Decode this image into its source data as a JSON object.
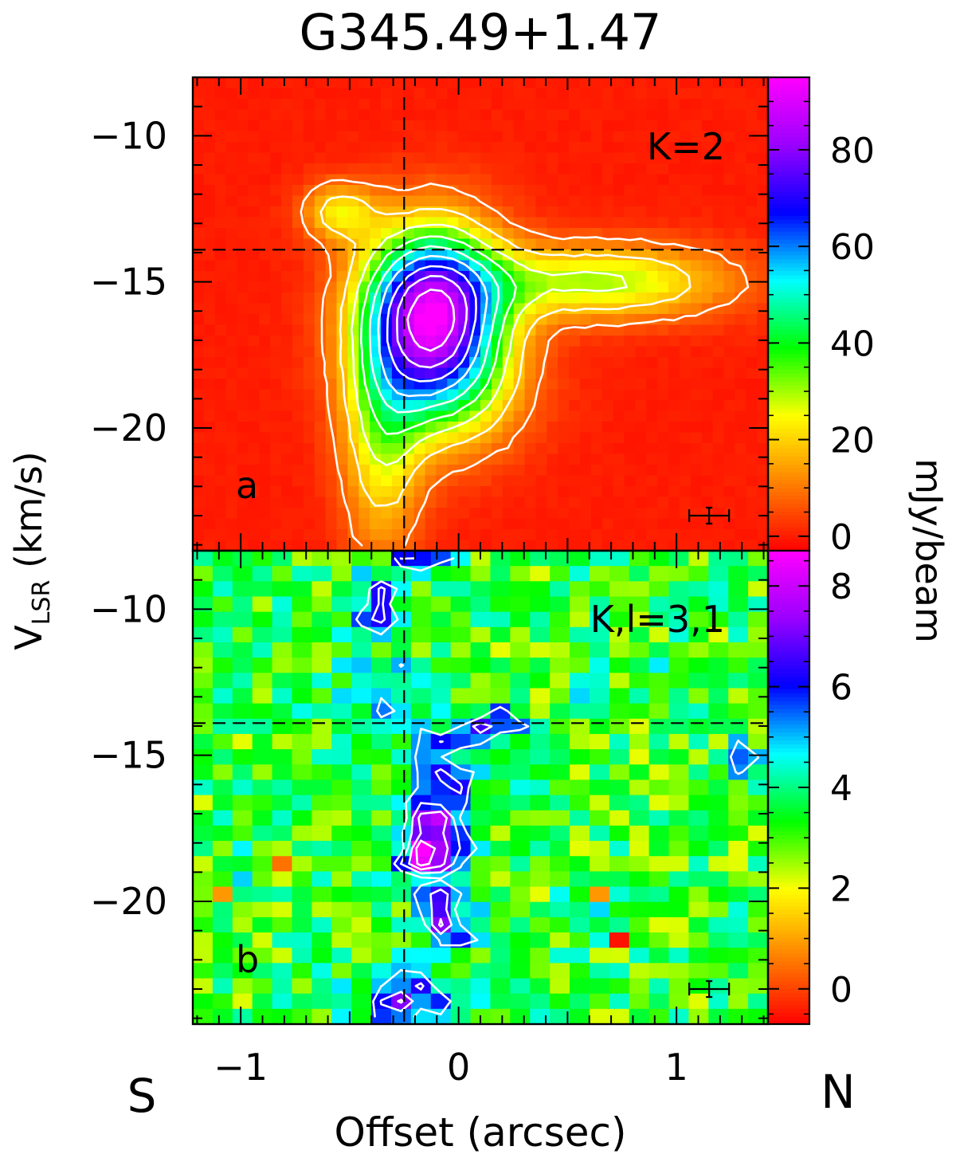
{
  "chart_data": [
    {
      "type": "heatmap",
      "panel": "a",
      "title": "G345.49+1.47",
      "annotation": "K=2",
      "xlabel": "Offset (arcsec)",
      "ylabel": "V_LSR (km/s)",
      "xlim": [
        -1.22,
        1.42
      ],
      "ylim": [
        -24.2,
        -8.0
      ],
      "xticks": [
        -1,
        0,
        1
      ],
      "yticks": [
        -10,
        -15,
        -20
      ],
      "colorbar": {
        "label": "mJy/beam",
        "range": [
          -3,
          95
        ],
        "ticks": [
          0,
          20,
          40,
          60,
          80
        ]
      },
      "reference_lines": {
        "offset": -0.25,
        "velocity": -13.9
      },
      "error_bar": {
        "offset": 1.15,
        "velocity": -23.0
      },
      "contours_white": [
        8,
        18,
        28,
        38,
        48,
        58,
        68,
        78,
        88
      ],
      "components": [
        {
          "offset": -0.12,
          "velocity": -16.1,
          "peak": 88,
          "sigma_offset": 0.22,
          "sigma_velocity": 2.0
        },
        {
          "offset": 0.65,
          "velocity": -15.0,
          "peak": 30,
          "sigma_offset": 0.42,
          "sigma_velocity": 0.9
        },
        {
          "offset": -0.55,
          "velocity": -12.6,
          "peak": 22,
          "sigma_offset": 0.12,
          "sigma_velocity": 0.7
        },
        {
          "offset": -0.35,
          "velocity": -20.5,
          "peak": 24,
          "sigma_offset": 0.13,
          "sigma_velocity": 2.8
        },
        {
          "offset": -0.05,
          "velocity": -18.8,
          "peak": 20,
          "sigma_offset": 0.25,
          "sigma_velocity": 1.6
        }
      ]
    },
    {
      "type": "heatmap",
      "panel": "b",
      "annotation": "K,l=3,1",
      "xlabel": "Offset (arcsec)",
      "ylabel": "V_LSR (km/s)",
      "xlim": [
        -1.22,
        1.42
      ],
      "ylim": [
        -24.2,
        -8.0
      ],
      "xticks": [
        -1,
        0,
        1
      ],
      "yticks": [
        -10,
        -15,
        -20
      ],
      "colorbar": {
        "label": "mJy/beam",
        "range": [
          -0.7,
          8.7
        ],
        "ticks": [
          0,
          2,
          4,
          6,
          8
        ]
      },
      "reference_lines": {
        "offset": -0.25,
        "velocity": -13.9
      },
      "error_bar": {
        "offset": 1.15,
        "velocity": -23.0
      },
      "background_level": 3.3,
      "components": [
        {
          "offset": -0.13,
          "velocity": -18.3,
          "peak": 4.9,
          "sigma_offset": 0.1,
          "sigma_velocity": 0.8
        },
        {
          "offset": -0.09,
          "velocity": -16.0,
          "peak": 3.4,
          "sigma_offset": 0.1,
          "sigma_velocity": 1.3
        },
        {
          "offset": -0.38,
          "velocity": -9.8,
          "peak": 3.3,
          "sigma_offset": 0.07,
          "sigma_velocity": 0.6
        },
        {
          "offset": 0.18,
          "velocity": -14.0,
          "peak": 3.0,
          "sigma_offset": 0.09,
          "sigma_velocity": 0.45
        },
        {
          "offset": -0.05,
          "velocity": -20.7,
          "peak": 3.0,
          "sigma_offset": 0.08,
          "sigma_velocity": 0.7
        },
        {
          "offset": -0.25,
          "velocity": -23.5,
          "peak": 2.8,
          "sigma_offset": 0.16,
          "sigma_velocity": 0.9
        },
        {
          "offset": -0.15,
          "velocity": -8.2,
          "peak": 3.0,
          "sigma_offset": 0.1,
          "sigma_velocity": 0.5
        },
        {
          "offset": -0.78,
          "velocity": -16.2,
          "peak": 2.2,
          "sigma_offset": 0.06,
          "sigma_velocity": 0.5
        },
        {
          "offset": 0.28,
          "velocity": -16.0,
          "peak": 2.0,
          "sigma_offset": 0.05,
          "sigma_velocity": 0.5
        },
        {
          "offset": 1.3,
          "velocity": -15.0,
          "peak": 1.8,
          "sigma_offset": 0.05,
          "sigma_velocity": 0.7
        },
        {
          "offset": 0.5,
          "velocity": -20.5,
          "peak": 1.5,
          "sigma_offset": 0.05,
          "sigma_velocity": 0.4
        },
        {
          "offset": -0.98,
          "velocity": -18.5,
          "peak": 1.5,
          "sigma_offset": 0.05,
          "sigma_velocity": 0.5
        },
        {
          "offset": -0.35,
          "velocity": -13.0,
          "peak": 1.3,
          "sigma_offset": 0.2,
          "sigma_velocity": 1.0
        },
        {
          "offset": 0.85,
          "velocity": -11.8,
          "peak": 1.2,
          "sigma_offset": 0.05,
          "sigma_velocity": 0.4
        },
        {
          "offset": 0.62,
          "velocity": -12.8,
          "peak": 1.2,
          "sigma_offset": 0.05,
          "sigma_velocity": 0.4
        },
        {
          "offset": 0.72,
          "velocity": -20.0,
          "peak": 1.3,
          "sigma_offset": 0.05,
          "sigma_velocity": 0.6
        }
      ],
      "outliers": [
        {
          "offset": 0.72,
          "velocity": -21.2,
          "value": -0.5
        },
        {
          "offset": -0.78,
          "velocity": -18.5,
          "value": 0.5
        },
        {
          "offset": -1.12,
          "velocity": -20.0,
          "value": 0.9
        },
        {
          "offset": 0.62,
          "velocity": -19.5,
          "value": 0.9
        }
      ]
    }
  ],
  "direction_labels": {
    "left": "S",
    "right": "N"
  },
  "panel_labels": [
    "a",
    "b"
  ],
  "colors": {
    "colormap": [
      "#ff0000",
      "#ff8000",
      "#ffff00",
      "#00ff00",
      "#00ffff",
      "#0000ff",
      "#9900ff",
      "#ff00ff"
    ],
    "contour": "#ffffff",
    "reference_line": "#000000",
    "axes": "#000000"
  }
}
